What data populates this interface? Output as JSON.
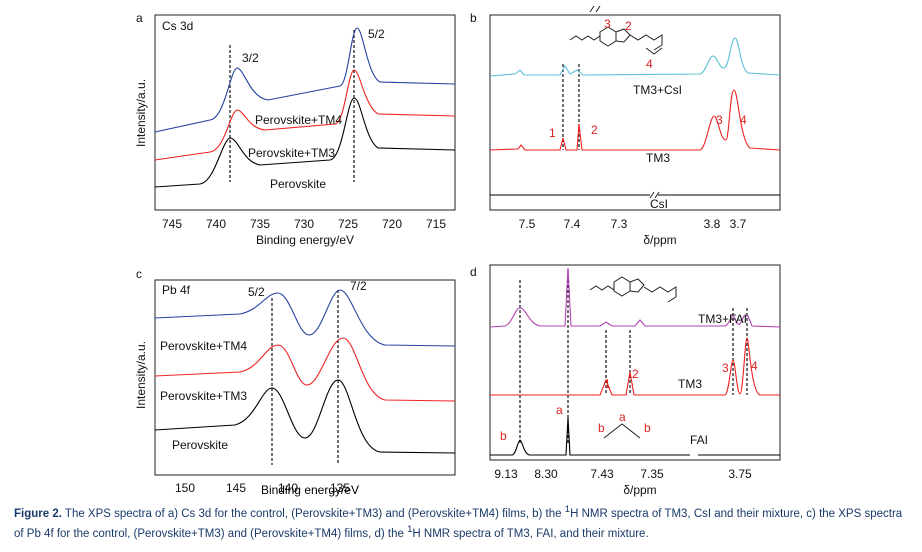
{
  "panels": [
    {
      "letter": "a",
      "title": "Cs 3d",
      "xticks": [
        "745",
        "740",
        "735",
        "730",
        "725",
        "720",
        "715"
      ],
      "xlabel": "Binding energy/eV",
      "ylabel": "Intensity/a.u.",
      "annotations": [
        "3/2",
        "5/2",
        "Perovskite+TM4",
        "Perovskite+TM3",
        "Perovskite"
      ]
    },
    {
      "letter": "b",
      "xticks": [
        "7.5",
        "7.4",
        "7.3",
        "3.8",
        "3.7"
      ],
      "xlabel": "δ/ppm",
      "annotations": [
        "TM3+CsI",
        "TM3",
        "CsI",
        "1",
        "2",
        "3",
        "4"
      ]
    },
    {
      "letter": "c",
      "title": "Pb 4f",
      "xticks": [
        "150",
        "145",
        "140",
        "135"
      ],
      "xlabel": "Binding energy/eV",
      "ylabel": "Intensity/a.u.",
      "annotations": [
        "5/2",
        "7/2",
        "Perovskite+TM4",
        "Perovskite+TM3",
        "Perovskite"
      ]
    },
    {
      "letter": "d",
      "xticks": [
        "9.13",
        "8.30",
        "7.43",
        "7.35",
        "3.75"
      ],
      "xlabel": "δ/ppm",
      "annotations": [
        "TM3+FAI",
        "TM3",
        "FAI",
        "1",
        "2",
        "3",
        "4",
        "a",
        "b"
      ]
    }
  ],
  "caption": {
    "lead": "Figure 2.",
    "parts": [
      " The XPS spectra of a) Cs 3d for the control, (Perovskite+TM3) and (Perovskite+TM4) films, b) the ",
      "1",
      "H NMR spectra of TM3, CsI and their mixture, c) the XPS spectra of Pb 4f for the control, (Perovskite+TM3) and (Perovskite+TM4) films, d) the ",
      "1",
      "H NMR spectra of TM3, FAI, and their mixture."
    ]
  }
}
